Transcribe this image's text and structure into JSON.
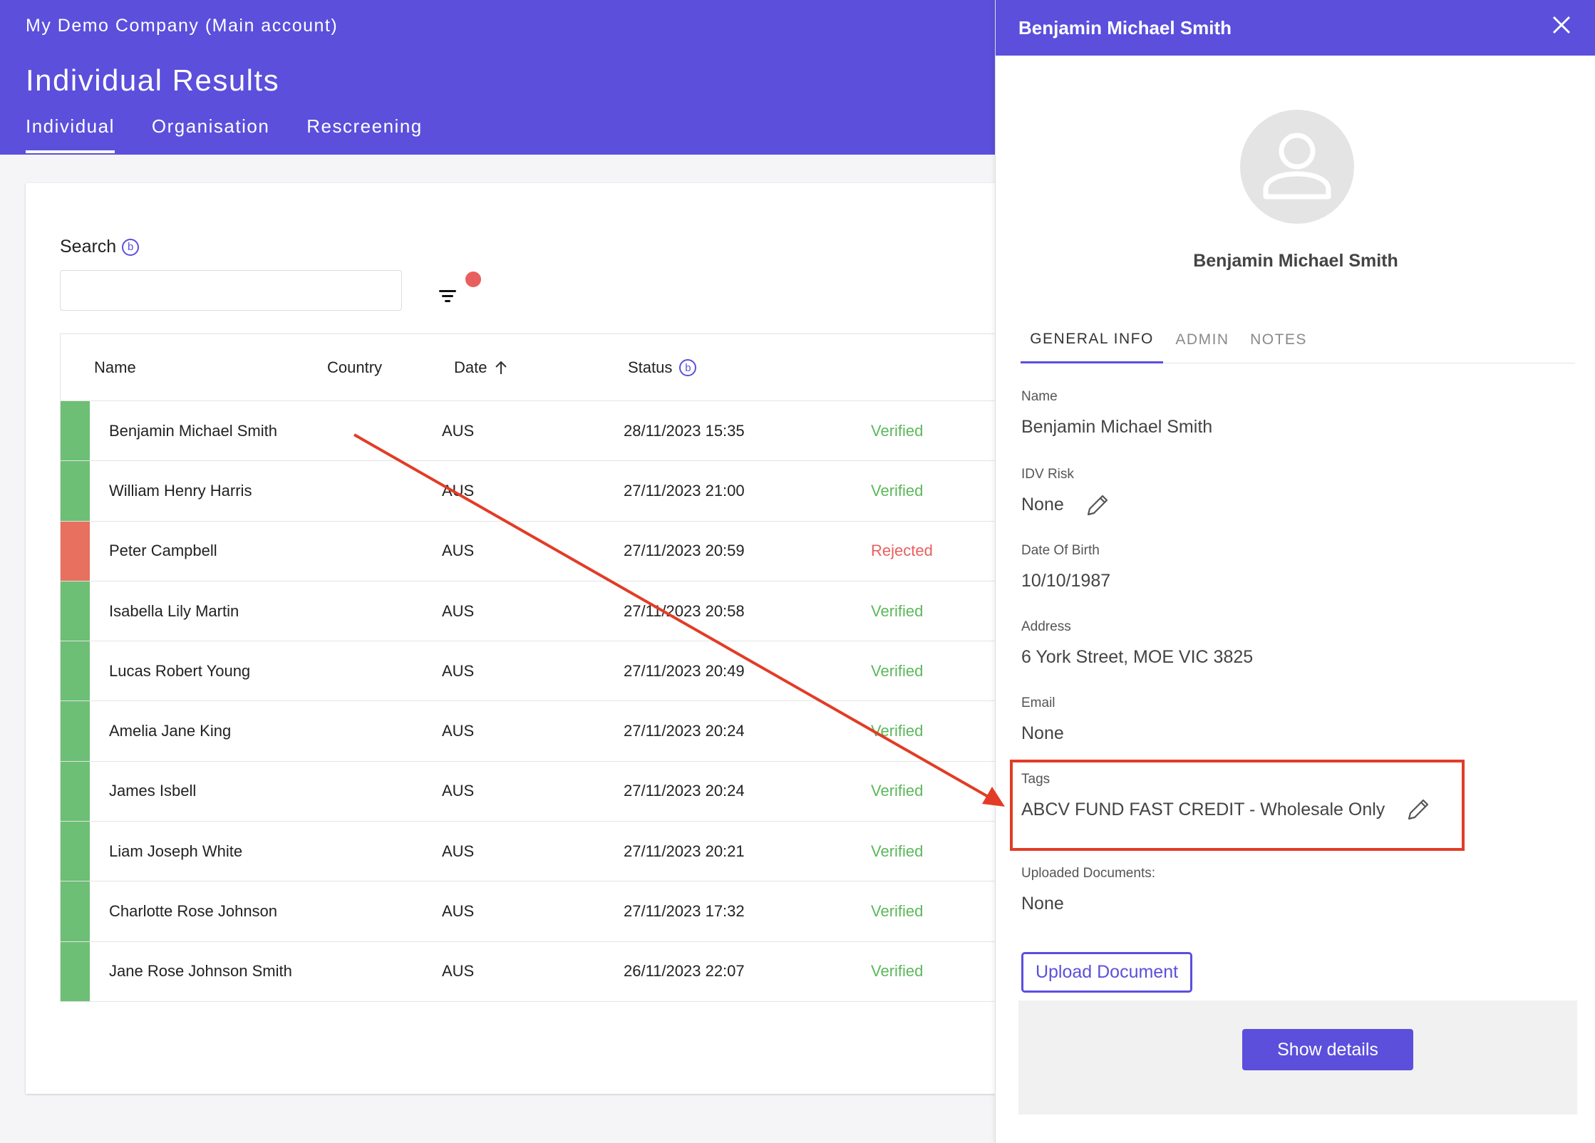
{
  "header": {
    "company": "My Demo Company (Main account)",
    "page_title": "Individual Results",
    "tabs": [
      {
        "label": "Individual"
      },
      {
        "label": "Organisation"
      },
      {
        "label": "Rescreening"
      }
    ]
  },
  "search": {
    "label": "Search",
    "info_glyph": "b",
    "value": ""
  },
  "filter": {
    "icon": "filter-icon",
    "badge_color": "#e8605d"
  },
  "table": {
    "columns": {
      "name": "Name",
      "country": "Country",
      "date": "Date",
      "status": "Status"
    },
    "sort_icon": "arrow-up-icon",
    "rows": [
      {
        "name": "Benjamin Michael Smith",
        "country": "AUS",
        "date": "28/11/2023 15:35",
        "status": "Verified"
      },
      {
        "name": "William Henry Harris",
        "country": "AUS",
        "date": "27/11/2023 21:00",
        "status": "Verified"
      },
      {
        "name": "Peter Campbell",
        "country": "AUS",
        "date": "27/11/2023 20:59",
        "status": "Rejected"
      },
      {
        "name": "Isabella Lily Martin",
        "country": "AUS",
        "date": "27/11/2023 20:58",
        "status": "Verified"
      },
      {
        "name": "Lucas Robert Young",
        "country": "AUS",
        "date": "27/11/2023 20:49",
        "status": "Verified"
      },
      {
        "name": "Amelia Jane King",
        "country": "AUS",
        "date": "27/11/2023 20:24",
        "status": "Verified"
      },
      {
        "name": "James Isbell",
        "country": "AUS",
        "date": "27/11/2023 20:24",
        "status": "Verified"
      },
      {
        "name": "Liam Joseph White",
        "country": "AUS",
        "date": "27/11/2023 20:21",
        "status": "Verified"
      },
      {
        "name": "Charlotte Rose Johnson",
        "country": "AUS",
        "date": "27/11/2023 17:32",
        "status": "Verified"
      },
      {
        "name": "Jane Rose Johnson Smith",
        "country": "AUS",
        "date": "26/11/2023 22:07",
        "status": "Verified"
      }
    ]
  },
  "drawer": {
    "title": "Benjamin Michael Smith",
    "profile_name": "Benjamin Michael Smith",
    "tabs": [
      {
        "label": "GENERAL INFO"
      },
      {
        "label": "ADMIN"
      },
      {
        "label": "NOTES"
      }
    ],
    "fields": {
      "name": {
        "label": "Name",
        "value": "Benjamin Michael Smith"
      },
      "idv_risk": {
        "label": "IDV Risk",
        "value": "None"
      },
      "dob": {
        "label": "Date Of Birth",
        "value": "10/10/1987"
      },
      "address": {
        "label": "Address",
        "value": "6 York Street, MOE VIC 3825"
      },
      "email": {
        "label": "Email",
        "value": "None"
      },
      "tags": {
        "label": "Tags",
        "value": "ABCV FUND FAST CREDIT - Wholesale Only"
      },
      "uploaded_docs": {
        "label": "Uploaded Documents:",
        "value": "None"
      }
    },
    "upload_button": "Upload Document",
    "show_details_button": "Show details"
  },
  "colors": {
    "brand": "#5b4fdc",
    "verified": "#5cb85c",
    "rejected": "#e8605d",
    "row_flag_verified": "#6cbf74",
    "row_flag_rejected": "#e8705e",
    "annotation": "#e23c26"
  }
}
